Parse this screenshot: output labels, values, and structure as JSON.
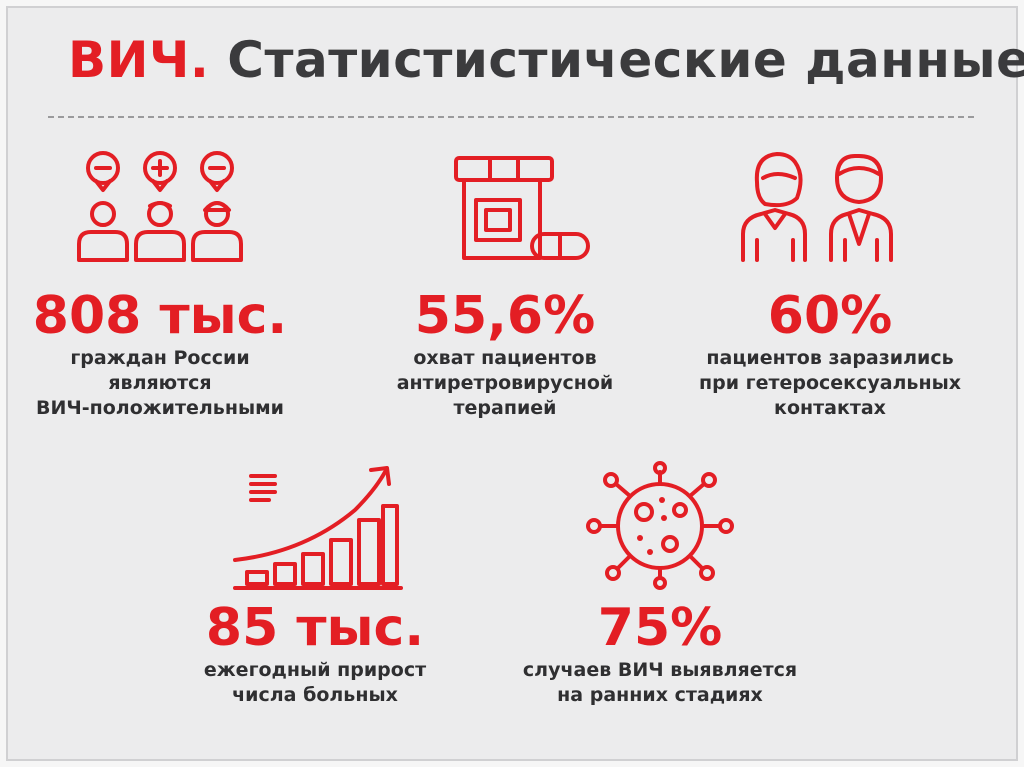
{
  "title": {
    "accent": "ВИЧ.",
    "rest": "Статистистические данные"
  },
  "accent_color": "#e31e24",
  "stats": [
    {
      "icon": "people-with-plus-minus-icon",
      "value": "808 тыс.",
      "desc": [
        "граждан России",
        "являются",
        "ВИЧ-положительными"
      ]
    },
    {
      "icon": "pill-bottle-icon",
      "value": "55,6%",
      "desc": [
        "охват пациентов",
        "антиретровирусной",
        "терапией"
      ]
    },
    {
      "icon": "couple-icon",
      "value": "60%",
      "desc": [
        "пациентов заразились",
        "при гетеросексуальных",
        "контактах"
      ]
    },
    {
      "icon": "growth-chart-icon",
      "value": "85 тыс.",
      "desc": [
        "ежегодный прирост",
        "числа больных"
      ]
    },
    {
      "icon": "virus-icon",
      "value": "75%",
      "desc": [
        "случаев ВИЧ выявляется",
        "на ранних стадиях"
      ]
    }
  ]
}
